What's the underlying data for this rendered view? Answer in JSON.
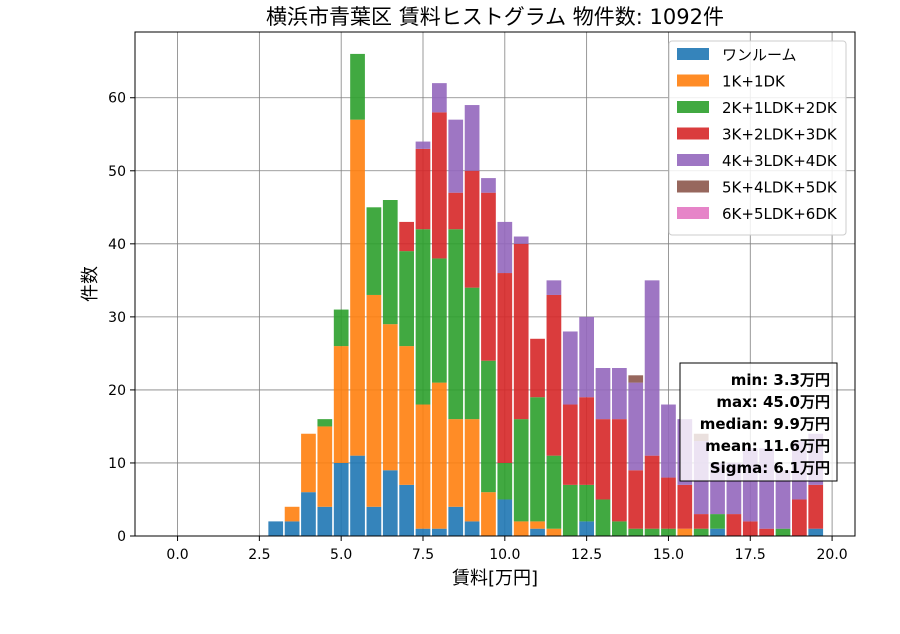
{
  "chart_data": {
    "type": "bar",
    "stacked": true,
    "title": "横浜市青葉区 賃料ヒストグラム 物件数: 1092件",
    "xlabel": "賃料[万円]",
    "ylabel": "件数",
    "xlim": [
      -1.3,
      20.7
    ],
    "ylim": [
      0,
      69
    ],
    "grid": true,
    "legend_position": "top-right",
    "x_ticks": [
      "0.0",
      "2.5",
      "5.0",
      "7.5",
      "10.0",
      "12.5",
      "15.0",
      "17.5",
      "20.0"
    ],
    "y_ticks": [
      "0",
      "10",
      "20",
      "30",
      "40",
      "50",
      "60"
    ],
    "bin_width": 0.5,
    "x": [
      3.0,
      3.5,
      4.0,
      4.5,
      5.0,
      5.5,
      6.0,
      6.5,
      7.0,
      7.5,
      8.0,
      8.5,
      9.0,
      9.5,
      10.0,
      10.5,
      11.0,
      11.5,
      12.0,
      12.5,
      13.0,
      13.5,
      14.0,
      14.5,
      15.0,
      15.5,
      16.0,
      16.5,
      17.0,
      17.5,
      18.0,
      18.5,
      19.0,
      19.5
    ],
    "series": [
      {
        "name": "ワンルーム",
        "color": "#1f77b4",
        "values": [
          2,
          2,
          6,
          4,
          10,
          11,
          4,
          9,
          7,
          1,
          1,
          4,
          2,
          0,
          5,
          0,
          1,
          0,
          0,
          2,
          0,
          0,
          0,
          0,
          0,
          0,
          0,
          1,
          0,
          0,
          0,
          0,
          0,
          1
        ]
      },
      {
        "name": "1K+1DK",
        "color": "#ff7f0e",
        "values": [
          0,
          2,
          8,
          11,
          16,
          46,
          29,
          20,
          19,
          17,
          20,
          12,
          14,
          6,
          0,
          2,
          1,
          1,
          0,
          0,
          0,
          0,
          0,
          0,
          0,
          1,
          0,
          0,
          0,
          0,
          0,
          0,
          0,
          0
        ]
      },
      {
        "name": "2K+1LDK+2DK",
        "color": "#2ca02c",
        "values": [
          0,
          0,
          0,
          1,
          5,
          9,
          12,
          17,
          13,
          24,
          17,
          26,
          18,
          18,
          5,
          14,
          17,
          10,
          7,
          5,
          5,
          2,
          1,
          1,
          1,
          0,
          1,
          2,
          0,
          0,
          0,
          1,
          0,
          0
        ]
      },
      {
        "name": "3K+2LDK+3DK",
        "color": "#d62728",
        "values": [
          0,
          0,
          0,
          0,
          0,
          0,
          0,
          0,
          4,
          11,
          20,
          5,
          16,
          23,
          26,
          24,
          8,
          22,
          11,
          12,
          11,
          14,
          8,
          10,
          7,
          6,
          2,
          0,
          3,
          2,
          1,
          0,
          5,
          6
        ]
      },
      {
        "name": "4K+3LDK+4DK",
        "color": "#9467bd",
        "values": [
          0,
          0,
          0,
          0,
          0,
          0,
          0,
          0,
          0,
          1,
          4,
          10,
          9,
          2,
          7,
          1,
          0,
          2,
          10,
          11,
          7,
          7,
          12,
          24,
          10,
          9,
          10,
          7,
          7,
          10,
          11,
          8,
          8,
          7
        ]
      },
      {
        "name": "5K+4LDK+5DK",
        "color": "#8c564b",
        "values": [
          0,
          0,
          0,
          0,
          0,
          0,
          0,
          0,
          0,
          0,
          0,
          0,
          0,
          0,
          0,
          0,
          0,
          0,
          0,
          0,
          0,
          0,
          1,
          0,
          0,
          0,
          1,
          0,
          0,
          0,
          0,
          0,
          0,
          0
        ]
      },
      {
        "name": "6K+5LDK+6DK",
        "color": "#e377c2",
        "values": [
          0,
          0,
          0,
          0,
          0,
          0,
          0,
          0,
          0,
          0,
          0,
          0,
          0,
          0,
          0,
          0,
          0,
          0,
          0,
          0,
          0,
          0,
          0,
          0,
          0,
          0,
          0,
          0,
          0,
          0,
          0,
          0,
          0,
          0
        ]
      }
    ],
    "stats": [
      "min: 3.3万円",
      "max: 45.0万円",
      "median: 9.9万円",
      "mean: 11.6万円",
      "Sigma: 6.1万円"
    ]
  }
}
